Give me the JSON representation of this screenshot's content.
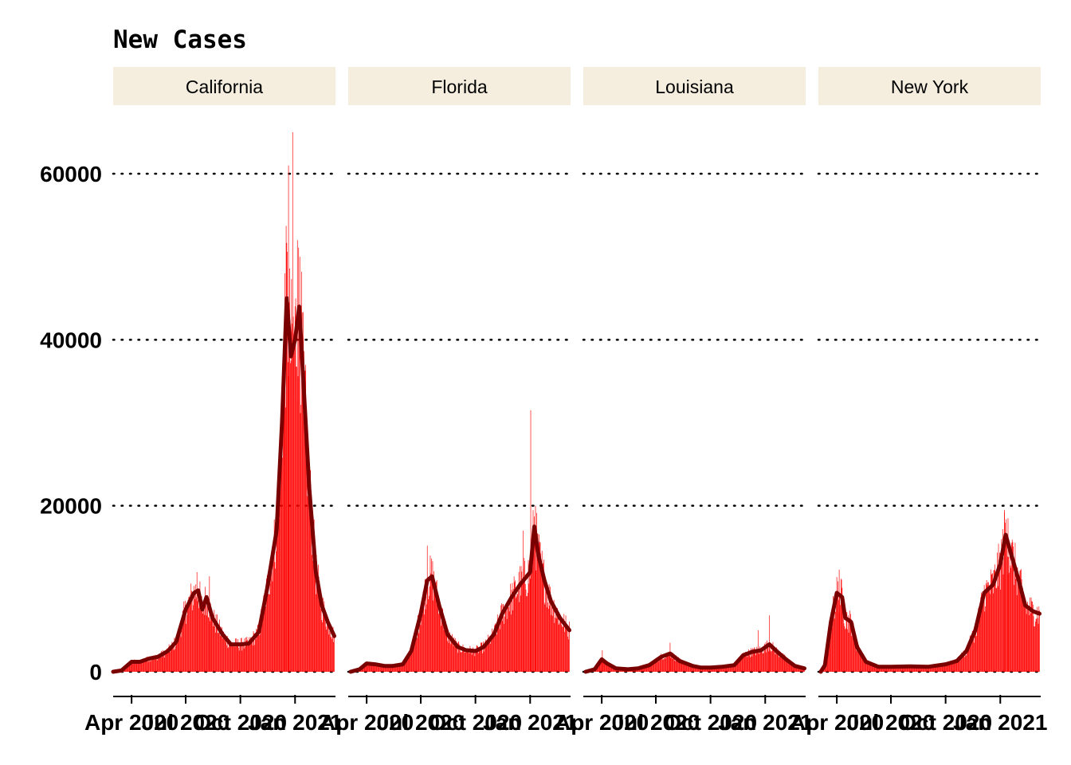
{
  "chart_data": {
    "type": "bar",
    "title": "New Cases",
    "xlabel": "",
    "ylabel": "",
    "ylim": [
      -3000,
      65000
    ],
    "yticks": [
      0,
      20000,
      40000,
      60000
    ],
    "xticks": [
      "Apr 2020",
      "Jul 2020",
      "Oct 2020",
      "Jan 2021"
    ],
    "xrange": [
      "2020-03-01",
      "2021-03-10"
    ],
    "grid": "horizontal dotted",
    "bar_color": "#ff0000",
    "line_color": "#7a0000",
    "strip_color": "#f5eedf",
    "series_note_bars": "daily new cases",
    "series_note_line": "7-day rolling average",
    "panels": [
      {
        "name": "California",
        "points": [
          [
            "2020-03-01",
            0
          ],
          [
            "2020-03-15",
            150
          ],
          [
            "2020-04-01",
            1200
          ],
          [
            "2020-04-15",
            1200
          ],
          [
            "2020-05-01",
            1600
          ],
          [
            "2020-05-15",
            1800
          ],
          [
            "2020-06-01",
            2500
          ],
          [
            "2020-06-15",
            3600
          ],
          [
            "2020-07-01",
            7500
          ],
          [
            "2020-07-15",
            9500
          ],
          [
            "2020-07-22",
            9800
          ],
          [
            "2020-07-29",
            7500
          ],
          [
            "2020-08-05",
            9000
          ],
          [
            "2020-08-15",
            6500
          ],
          [
            "2020-09-01",
            4500
          ],
          [
            "2020-09-15",
            3300
          ],
          [
            "2020-10-01",
            3300
          ],
          [
            "2020-10-15",
            3400
          ],
          [
            "2020-11-01",
            4800
          ],
          [
            "2020-11-15",
            10000
          ],
          [
            "2020-12-01",
            17000
          ],
          [
            "2020-12-10",
            30000
          ],
          [
            "2020-12-18",
            45000
          ],
          [
            "2020-12-25",
            38000
          ],
          [
            "2021-01-01",
            40000
          ],
          [
            "2021-01-08",
            44000
          ],
          [
            "2021-01-15",
            35000
          ],
          [
            "2021-01-25",
            22000
          ],
          [
            "2021-02-05",
            12000
          ],
          [
            "2021-02-15",
            8000
          ],
          [
            "2021-02-25",
            6000
          ],
          [
            "2021-03-08",
            4300
          ]
        ],
        "spikes": [
          [
            "2020-07-20",
            12000
          ],
          [
            "2020-08-10",
            11500
          ],
          [
            "2020-12-15",
            48000
          ],
          [
            "2020-12-21",
            61000
          ],
          [
            "2020-12-28",
            65000
          ],
          [
            "2021-01-05",
            52000
          ],
          [
            "2021-01-09",
            50000
          ]
        ]
      },
      {
        "name": "Florida",
        "points": [
          [
            "2020-03-05",
            0
          ],
          [
            "2020-03-20",
            300
          ],
          [
            "2020-04-01",
            1000
          ],
          [
            "2020-04-15",
            900
          ],
          [
            "2020-05-01",
            700
          ],
          [
            "2020-05-15",
            700
          ],
          [
            "2020-06-01",
            900
          ],
          [
            "2020-06-15",
            2500
          ],
          [
            "2020-07-01",
            7000
          ],
          [
            "2020-07-12",
            11000
          ],
          [
            "2020-07-20",
            11500
          ],
          [
            "2020-08-01",
            8000
          ],
          [
            "2020-08-15",
            4500
          ],
          [
            "2020-09-01",
            3000
          ],
          [
            "2020-09-15",
            2600
          ],
          [
            "2020-10-01",
            2500
          ],
          [
            "2020-10-15",
            3000
          ],
          [
            "2020-11-01",
            4500
          ],
          [
            "2020-11-15",
            7000
          ],
          [
            "2020-12-01",
            9000
          ],
          [
            "2020-12-15",
            10500
          ],
          [
            "2021-01-01",
            12000
          ],
          [
            "2021-01-08",
            17500
          ],
          [
            "2021-01-15",
            14000
          ],
          [
            "2021-01-25",
            11000
          ],
          [
            "2021-02-05",
            8500
          ],
          [
            "2021-02-20",
            6500
          ],
          [
            "2021-03-08",
            5000
          ]
        ],
        "spikes": [
          [
            "2020-07-12",
            15200
          ],
          [
            "2020-12-20",
            17000
          ],
          [
            "2021-01-02",
            31500
          ],
          [
            "2021-01-10",
            20000
          ]
        ]
      },
      {
        "name": "Louisiana",
        "points": [
          [
            "2020-03-05",
            0
          ],
          [
            "2020-03-20",
            300
          ],
          [
            "2020-04-01",
            1500
          ],
          [
            "2020-04-10",
            1000
          ],
          [
            "2020-04-25",
            400
          ],
          [
            "2020-05-15",
            300
          ],
          [
            "2020-06-01",
            400
          ],
          [
            "2020-06-20",
            800
          ],
          [
            "2020-07-10",
            1800
          ],
          [
            "2020-07-25",
            2200
          ],
          [
            "2020-08-10",
            1300
          ],
          [
            "2020-09-01",
            700
          ],
          [
            "2020-09-15",
            500
          ],
          [
            "2020-10-01",
            500
          ],
          [
            "2020-10-20",
            600
          ],
          [
            "2020-11-10",
            800
          ],
          [
            "2020-11-25",
            2000
          ],
          [
            "2020-12-10",
            2400
          ],
          [
            "2020-12-25",
            2600
          ],
          [
            "2021-01-08",
            3300
          ],
          [
            "2021-01-20",
            2500
          ],
          [
            "2021-02-05",
            1500
          ],
          [
            "2021-02-20",
            700
          ],
          [
            "2021-03-08",
            400
          ]
        ],
        "spikes": [
          [
            "2020-04-02",
            2600
          ],
          [
            "2020-07-25",
            3500
          ],
          [
            "2020-12-20",
            5000
          ],
          [
            "2021-01-08",
            6800
          ]
        ]
      },
      {
        "name": "New York",
        "points": [
          [
            "2020-03-05",
            0
          ],
          [
            "2020-03-12",
            800
          ],
          [
            "2020-03-22",
            6000
          ],
          [
            "2020-04-01",
            9500
          ],
          [
            "2020-04-10",
            9000
          ],
          [
            "2020-04-15",
            6500
          ],
          [
            "2020-04-25",
            6000
          ],
          [
            "2020-05-05",
            3000
          ],
          [
            "2020-05-20",
            1200
          ],
          [
            "2020-06-10",
            600
          ],
          [
            "2020-07-01",
            600
          ],
          [
            "2020-08-01",
            650
          ],
          [
            "2020-09-01",
            600
          ],
          [
            "2020-10-01",
            900
          ],
          [
            "2020-10-20",
            1300
          ],
          [
            "2020-11-05",
            2500
          ],
          [
            "2020-11-20",
            5000
          ],
          [
            "2020-12-05",
            9500
          ],
          [
            "2020-12-20",
            10500
          ],
          [
            "2021-01-01",
            13000
          ],
          [
            "2021-01-10",
            16500
          ],
          [
            "2021-01-20",
            14000
          ],
          [
            "2021-02-01",
            11000
          ],
          [
            "2021-02-12",
            8000
          ],
          [
            "2021-02-25",
            7300
          ],
          [
            "2021-03-08",
            7000
          ]
        ],
        "spikes": [
          [
            "2020-04-05",
            12300
          ],
          [
            "2021-01-08",
            19500
          ],
          [
            "2021-01-14",
            18500
          ]
        ]
      }
    ]
  }
}
